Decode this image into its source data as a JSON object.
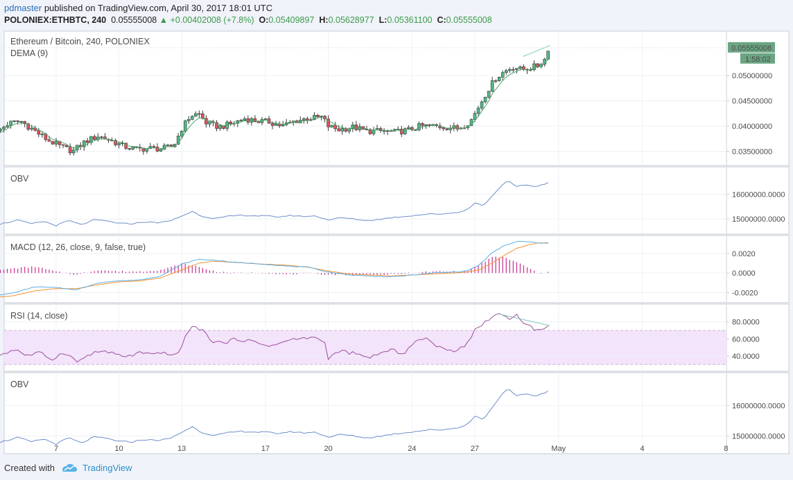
{
  "header": {
    "author": "pdmaster",
    "published": "published on TradingView.com, April 30, 2017 18:01 UTC",
    "symbol": "POLONIEX:ETHBTC, 240",
    "price": "0.05555008",
    "change": "+0.00402008 (+7.8%)",
    "o_label": "O:",
    "o_value": "0.05409897",
    "h_label": "H:",
    "h_value": "0.05628977",
    "l_label": "L:",
    "l_value": "0.05361100",
    "c_label": "C:",
    "c_value": "0.05555008"
  },
  "footer": {
    "created_with": "Created with",
    "brand": "TradingView"
  },
  "colors": {
    "up": "#53b987",
    "down": "#eb4d5c",
    "candle_border": "#2f5b3f",
    "line_blue": "#6f8ec9",
    "macd_orange": "#f5912f",
    "macd_hist": "#c72c8b",
    "rsi_line": "#9c4f9c",
    "rsi_band": "#f3e3fb",
    "trend_teal": "#7ec6b7",
    "price_badge": "#6ba583"
  },
  "chart_data": [
    {
      "type": "candlestick",
      "title": "Ethereum / Bitcoin, 240, POLONIEX",
      "indicator": "DEMA (9)",
      "ylim": [
        0.033,
        0.058
      ],
      "y_ticks": [
        "0.03500000",
        "0.04000000",
        "0.04500000",
        "0.05000000"
      ],
      "last_price": "0.05555008",
      "countdown": "1:58:02",
      "x_ticks": [
        "7",
        "10",
        "13",
        "17",
        "20",
        "24",
        "27",
        "May",
        "4",
        "8"
      ],
      "x_tick_days": [
        7,
        10,
        13,
        17,
        20,
        24,
        27,
        31,
        35,
        39
      ],
      "close_keypoints": [
        [
          4.0,
          0.0383
        ],
        [
          4.7,
          0.0405
        ],
        [
          5.3,
          0.041
        ],
        [
          6.0,
          0.039
        ],
        [
          6.6,
          0.0372
        ],
        [
          7.2,
          0.036
        ],
        [
          7.8,
          0.035
        ],
        [
          8.4,
          0.037
        ],
        [
          9.0,
          0.038
        ],
        [
          9.6,
          0.0372
        ],
        [
          10.2,
          0.036
        ],
        [
          10.8,
          0.0354
        ],
        [
          11.4,
          0.0356
        ],
        [
          12.0,
          0.0355
        ],
        [
          12.6,
          0.036
        ],
        [
          13.0,
          0.0395
        ],
        [
          13.4,
          0.042
        ],
        [
          13.8,
          0.0425
        ],
        [
          14.2,
          0.0405
        ],
        [
          14.8,
          0.0398
        ],
        [
          15.4,
          0.0405
        ],
        [
          16.0,
          0.0415
        ],
        [
          16.6,
          0.041
        ],
        [
          17.2,
          0.0408
        ],
        [
          17.8,
          0.04
        ],
        [
          18.4,
          0.041
        ],
        [
          19.0,
          0.0415
        ],
        [
          19.7,
          0.0418
        ],
        [
          20.0,
          0.04
        ],
        [
          20.5,
          0.0393
        ],
        [
          21.2,
          0.0398
        ],
        [
          21.8,
          0.039
        ],
        [
          22.5,
          0.039
        ],
        [
          23.2,
          0.0388
        ],
        [
          23.8,
          0.0392
        ],
        [
          24.4,
          0.04
        ],
        [
          25.0,
          0.04
        ],
        [
          25.6,
          0.0398
        ],
        [
          26.2,
          0.0395
        ],
        [
          26.8,
          0.041
        ],
        [
          27.2,
          0.044
        ],
        [
          27.6,
          0.047
        ],
        [
          28.0,
          0.0495
        ],
        [
          28.3,
          0.0505
        ],
        [
          28.6,
          0.0513
        ],
        [
          28.9,
          0.0518
        ],
        [
          29.2,
          0.0512
        ],
        [
          29.6,
          0.0515
        ],
        [
          30.0,
          0.052
        ],
        [
          30.4,
          0.0535
        ],
        [
          30.55,
          0.05555
        ]
      ],
      "trendline": [
        [
          29.3,
          0.0538
        ],
        [
          30.6,
          0.056
        ]
      ]
    },
    {
      "type": "line",
      "title": "OBV",
      "y_ticks": [
        "15000000.0000",
        "16000000.0000"
      ],
      "ylim": [
        14550000,
        16950000
      ],
      "keypoints": [
        [
          4.0,
          14740000
        ],
        [
          4.7,
          14860000
        ],
        [
          5.2,
          14950000
        ],
        [
          5.8,
          14800000
        ],
        [
          6.4,
          14900000
        ],
        [
          7.0,
          14730000
        ],
        [
          7.6,
          14940000
        ],
        [
          8.2,
          14760000
        ],
        [
          8.8,
          14960000
        ],
        [
          9.4,
          14920000
        ],
        [
          10.0,
          14820000
        ],
        [
          10.6,
          14800000
        ],
        [
          11.2,
          14880000
        ],
        [
          11.8,
          14850000
        ],
        [
          12.4,
          14900000
        ],
        [
          13.0,
          15120000
        ],
        [
          13.5,
          15300000
        ],
        [
          14.0,
          15100000
        ],
        [
          14.6,
          15020000
        ],
        [
          15.2,
          15100000
        ],
        [
          15.8,
          15150000
        ],
        [
          16.4,
          15130000
        ],
        [
          17.0,
          15120000
        ],
        [
          17.6,
          15080000
        ],
        [
          18.2,
          15140000
        ],
        [
          18.8,
          15100000
        ],
        [
          19.4,
          15120000
        ],
        [
          20.0,
          14960000
        ],
        [
          20.6,
          15050000
        ],
        [
          21.2,
          15000000
        ],
        [
          21.8,
          14930000
        ],
        [
          22.4,
          14980000
        ],
        [
          23.0,
          15050000
        ],
        [
          23.6,
          15100000
        ],
        [
          24.2,
          15150000
        ],
        [
          24.8,
          15200000
        ],
        [
          25.4,
          15200000
        ],
        [
          26.0,
          15250000
        ],
        [
          26.6,
          15350000
        ],
        [
          27.0,
          15650000
        ],
        [
          27.4,
          15550000
        ],
        [
          27.8,
          15900000
        ],
        [
          28.2,
          16300000
        ],
        [
          28.6,
          16550000
        ],
        [
          29.0,
          16300000
        ],
        [
          29.4,
          16400000
        ],
        [
          29.8,
          16320000
        ],
        [
          30.2,
          16380000
        ],
        [
          30.55,
          16500000
        ]
      ]
    },
    {
      "type": "line",
      "title": "MACD (12, 26, close, 9, false, true)",
      "y_ticks": [
        "-0.0020",
        "0.0000",
        "0.0020"
      ],
      "ylim": [
        -0.0026,
        0.0034
      ],
      "macd_keypoints": [
        [
          4.0,
          -0.0024
        ],
        [
          5.0,
          -0.002
        ],
        [
          6.0,
          -0.0014
        ],
        [
          7.0,
          -0.0015
        ],
        [
          8.0,
          -0.0017
        ],
        [
          9.0,
          -0.001
        ],
        [
          10.0,
          -0.0008
        ],
        [
          11.0,
          -0.0007
        ],
        [
          12.0,
          -0.0003
        ],
        [
          13.0,
          0.0009
        ],
        [
          13.8,
          0.0014
        ],
        [
          14.6,
          0.0013
        ],
        [
          15.4,
          0.0011
        ],
        [
          16.2,
          0.001
        ],
        [
          17.0,
          0.0009
        ],
        [
          18.0,
          0.0007
        ],
        [
          19.0,
          0.0006
        ],
        [
          20.0,
          0.0001
        ],
        [
          21.0,
          -0.0002
        ],
        [
          22.0,
          -0.0003
        ],
        [
          23.0,
          -0.0004
        ],
        [
          24.0,
          -0.0002
        ],
        [
          25.0,
          0.0
        ],
        [
          26.0,
          0.0001
        ],
        [
          26.6,
          0.0002
        ],
        [
          27.2,
          0.0008
        ],
        [
          27.8,
          0.002
        ],
        [
          28.4,
          0.0028
        ],
        [
          29.0,
          0.0032
        ],
        [
          29.6,
          0.0032
        ],
        [
          30.1,
          0.003
        ],
        [
          30.55,
          0.0031
        ]
      ],
      "signal_keypoints": [
        [
          4.0,
          -0.0025
        ],
        [
          5.0,
          -0.0023
        ],
        [
          6.0,
          -0.0018
        ],
        [
          7.0,
          -0.0016
        ],
        [
          8.0,
          -0.0016
        ],
        [
          9.0,
          -0.0012
        ],
        [
          10.0,
          -0.0009
        ],
        [
          11.0,
          -0.0008
        ],
        [
          12.0,
          -0.0005
        ],
        [
          13.0,
          0.0003
        ],
        [
          13.8,
          0.001
        ],
        [
          14.6,
          0.0012
        ],
        [
          15.4,
          0.0011
        ],
        [
          16.2,
          0.001
        ],
        [
          17.0,
          0.0009
        ],
        [
          18.0,
          0.0008
        ],
        [
          19.0,
          0.0006
        ],
        [
          20.0,
          0.0002
        ],
        [
          21.0,
          -0.0001
        ],
        [
          22.0,
          -0.0002
        ],
        [
          23.0,
          -0.0003
        ],
        [
          24.0,
          -0.0002
        ],
        [
          25.0,
          -0.0001
        ],
        [
          26.0,
          0.0
        ],
        [
          26.6,
          0.0001
        ],
        [
          27.2,
          0.0003
        ],
        [
          27.8,
          0.001
        ],
        [
          28.4,
          0.0018
        ],
        [
          29.0,
          0.0025
        ],
        [
          29.6,
          0.0029
        ],
        [
          30.1,
          0.0031
        ],
        [
          30.55,
          0.003
        ]
      ]
    },
    {
      "type": "line",
      "title": "RSI (14, close)",
      "y_ticks": [
        "40.0000",
        "60.0000",
        "80.0000"
      ],
      "ylim": [
        27,
        96
      ],
      "band": [
        30,
        70
      ],
      "keypoints": [
        [
          4.0,
          38
        ],
        [
          4.6,
          44
        ],
        [
          5.1,
          48
        ],
        [
          5.6,
          40
        ],
        [
          6.2,
          44
        ],
        [
          6.8,
          36
        ],
        [
          7.4,
          45
        ],
        [
          8.0,
          33
        ],
        [
          8.6,
          42
        ],
        [
          9.2,
          46
        ],
        [
          9.8,
          42
        ],
        [
          10.4,
          39
        ],
        [
          11.0,
          44
        ],
        [
          11.6,
          41
        ],
        [
          12.2,
          44
        ],
        [
          12.8,
          40
        ],
        [
          13.2,
          66
        ],
        [
          13.6,
          75
        ],
        [
          14.0,
          70
        ],
        [
          14.4,
          58
        ],
        [
          15.0,
          55
        ],
        [
          15.6,
          60
        ],
        [
          16.2,
          58
        ],
        [
          16.8,
          54
        ],
        [
          17.4,
          52
        ],
        [
          18.0,
          58
        ],
        [
          18.6,
          60
        ],
        [
          19.2,
          62
        ],
        [
          19.8,
          58
        ],
        [
          20.0,
          38
        ],
        [
          20.6,
          46
        ],
        [
          21.2,
          43
        ],
        [
          21.8,
          38
        ],
        [
          22.4,
          42
        ],
        [
          23.0,
          47
        ],
        [
          23.6,
          43
        ],
        [
          24.2,
          58
        ],
        [
          24.8,
          60
        ],
        [
          25.4,
          48
        ],
        [
          26.0,
          46
        ],
        [
          26.6,
          54
        ],
        [
          27.0,
          70
        ],
        [
          27.4,
          78
        ],
        [
          27.8,
          86
        ],
        [
          28.2,
          90
        ],
        [
          28.6,
          84
        ],
        [
          29.0,
          88
        ],
        [
          29.4,
          78
        ],
        [
          29.8,
          72
        ],
        [
          30.2,
          70
        ],
        [
          30.55,
          76
        ]
      ],
      "trendline": [
        [
          28.1,
          89.5
        ],
        [
          30.6,
          75.5
        ]
      ]
    },
    {
      "type": "line",
      "title": "OBV",
      "y_ticks": [
        "15000000.0000",
        "16000000.0000"
      ],
      "ylim": [
        14550000,
        16950000
      ],
      "keypoints": [
        [
          4.0,
          14740000
        ],
        [
          4.7,
          14860000
        ],
        [
          5.2,
          14950000
        ],
        [
          5.8,
          14800000
        ],
        [
          6.4,
          14900000
        ],
        [
          7.0,
          14730000
        ],
        [
          7.6,
          14940000
        ],
        [
          8.2,
          14760000
        ],
        [
          8.8,
          14960000
        ],
        [
          9.4,
          14920000
        ],
        [
          10.0,
          14820000
        ],
        [
          10.6,
          14800000
        ],
        [
          11.2,
          14880000
        ],
        [
          11.8,
          14850000
        ],
        [
          12.4,
          14900000
        ],
        [
          13.0,
          15120000
        ],
        [
          13.5,
          15300000
        ],
        [
          14.0,
          15100000
        ],
        [
          14.6,
          15020000
        ],
        [
          15.2,
          15100000
        ],
        [
          15.8,
          15150000
        ],
        [
          16.4,
          15130000
        ],
        [
          17.0,
          15120000
        ],
        [
          17.6,
          15080000
        ],
        [
          18.2,
          15140000
        ],
        [
          18.8,
          15100000
        ],
        [
          19.4,
          15120000
        ],
        [
          20.0,
          14960000
        ],
        [
          20.6,
          15050000
        ],
        [
          21.2,
          15000000
        ],
        [
          21.8,
          14930000
        ],
        [
          22.4,
          14980000
        ],
        [
          23.0,
          15050000
        ],
        [
          23.6,
          15100000
        ],
        [
          24.2,
          15150000
        ],
        [
          24.8,
          15200000
        ],
        [
          25.4,
          15200000
        ],
        [
          26.0,
          15250000
        ],
        [
          26.6,
          15350000
        ],
        [
          27.0,
          15650000
        ],
        [
          27.4,
          15550000
        ],
        [
          27.8,
          15900000
        ],
        [
          28.2,
          16300000
        ],
        [
          28.6,
          16550000
        ],
        [
          29.0,
          16300000
        ],
        [
          29.4,
          16400000
        ],
        [
          29.8,
          16320000
        ],
        [
          30.2,
          16380000
        ],
        [
          30.55,
          16500000
        ]
      ]
    }
  ]
}
